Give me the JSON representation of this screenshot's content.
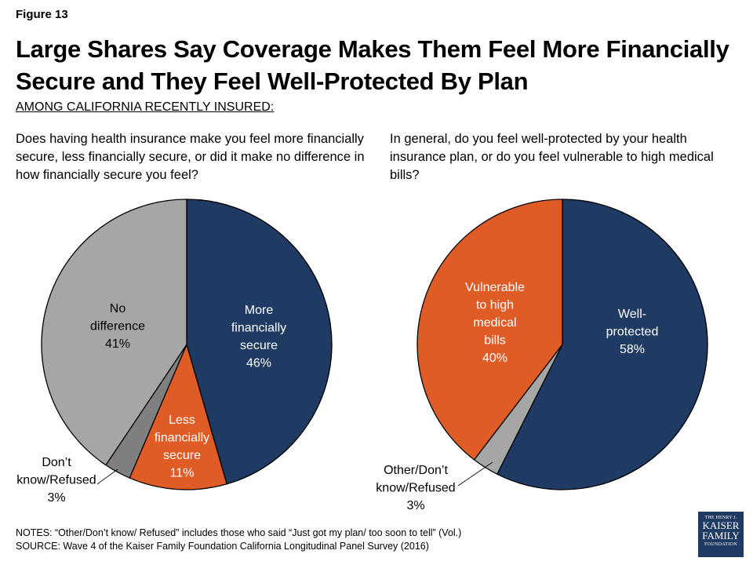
{
  "figure_label": "Figure 13",
  "title": "Large Shares Say Coverage Makes Them Feel More Financially Secure and They Feel Well-Protected By Plan",
  "subtitle": "AMONG CALIFORNIA RECENTLY INSURED:",
  "notes": "NOTES: “Other/Don’t know/ Refused” includes those who said “Just got my plan/ too soon to tell” (Vol.)",
  "source": "SOURCE: Wave 4 of the Kaiser Family Foundation California Longitudinal Panel Survey (2016)",
  "logo": {
    "line1": "THE HENRY J.",
    "line2": "KAISER",
    "line3": "FAMILY",
    "line4": "FOUNDATION",
    "color": "#1f3a63"
  },
  "chart_data": [
    {
      "type": "pie",
      "title": "Does having health insurance make you feel more financially secure, less financially secure, or did it make no difference in how financially secure you feel?",
      "slices": [
        {
          "label": "More financially secure",
          "label_lines": [
            "More",
            "financially",
            "secure"
          ],
          "pct_text": "46%",
          "value": 46,
          "color": "#1f3a63"
        },
        {
          "label": "Less financially secure",
          "label_lines": [
            "Less",
            "financially",
            "secure"
          ],
          "pct_text": "11%",
          "value": 11,
          "color": "#e05c26"
        },
        {
          "label": "Don’t know/Refused",
          "label_lines": [
            "Don’t",
            "know/Refused"
          ],
          "pct_text": "3%",
          "value": 3,
          "color": "#7f7f7f"
        },
        {
          "label": "No difference",
          "label_lines": [
            "No",
            "difference"
          ],
          "pct_text": "41%",
          "value": 41,
          "color": "#a6a6a6"
        }
      ]
    },
    {
      "type": "pie",
      "title": "In general, do you feel well-protected by your health insurance plan, or do you feel vulnerable to high medical bills?",
      "slices": [
        {
          "label": "Well-protected",
          "label_lines": [
            "Well-",
            "protected"
          ],
          "pct_text": "58%",
          "value": 58,
          "color": "#1f3a63"
        },
        {
          "label": "Other/Don’t know/Refused",
          "label_lines": [
            "Other/Don’t",
            "know/Refused"
          ],
          "pct_text": "3%",
          "value": 3,
          "color": "#a6a6a6"
        },
        {
          "label": "Vulnerable to high medical bills",
          "label_lines": [
            "Vulnerable",
            "to high",
            "medical",
            "bills"
          ],
          "pct_text": "40%",
          "value": 40,
          "color": "#e05c26"
        }
      ]
    }
  ]
}
